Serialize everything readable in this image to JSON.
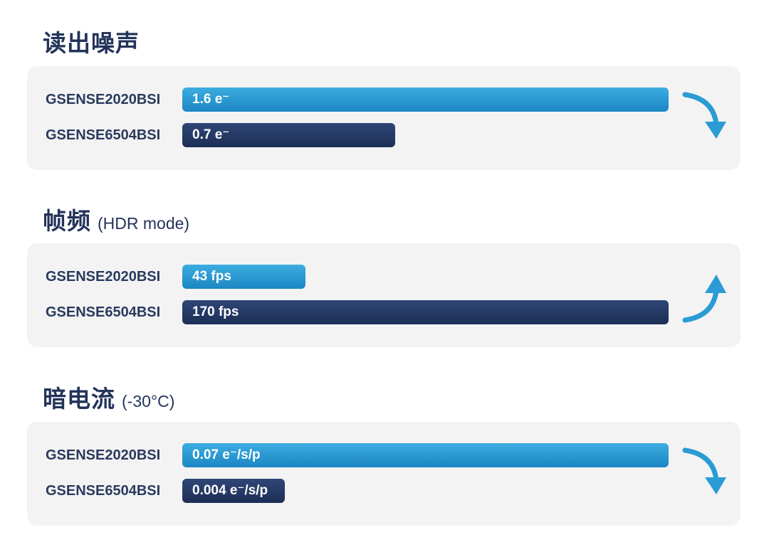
{
  "chart_data": [
    {
      "type": "bar",
      "title": "读出噪声",
      "subtitle": "",
      "categories": [
        "GSENSE2020BSI",
        "GSENSE6504BSI"
      ],
      "values": [
        1.6,
        0.7
      ],
      "labels": [
        "1.6 e⁻",
        "0.7 e⁻"
      ],
      "unit": "e⁻",
      "trend": "down"
    },
    {
      "type": "bar",
      "title": "帧频",
      "subtitle": "(HDR mode)",
      "categories": [
        "GSENSE2020BSI",
        "GSENSE6504BSI"
      ],
      "values": [
        43,
        170
      ],
      "labels": [
        "43 fps",
        "170 fps"
      ],
      "unit": "fps",
      "trend": "up"
    },
    {
      "type": "bar",
      "title": "暗电流",
      "subtitle": "(-30°C)",
      "categories": [
        "GSENSE2020BSI",
        "GSENSE6504BSI"
      ],
      "values": [
        0.07,
        0.004
      ],
      "labels": [
        "0.07 e⁻/s/p",
        "0.004 e⁻/s/p"
      ],
      "unit": "e⁻/s/p",
      "trend": "down"
    }
  ],
  "colors": {
    "bar_light": "#2a9bd4",
    "bar_dark": "#26396a",
    "title": "#23345a",
    "card_bg": "#f3f3f3",
    "arrow": "#2a9bd4"
  },
  "icons": {
    "down": "curved-down-arrow-icon",
    "up": "curved-up-arrow-icon"
  }
}
